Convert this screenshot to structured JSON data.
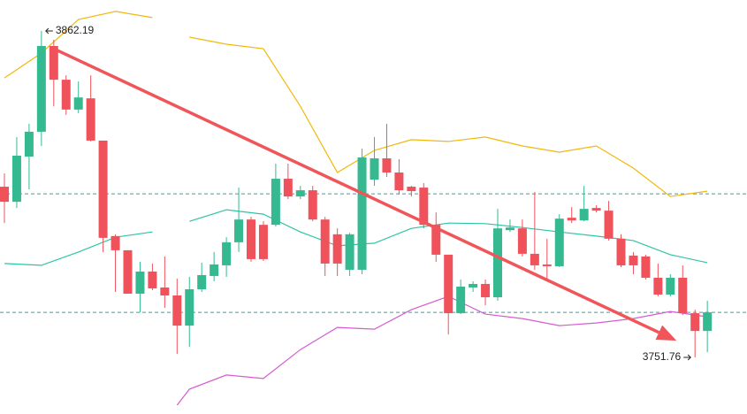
{
  "chart_data": {
    "type": "candlestick",
    "ylim": [
      3732.6,
      3872.67
    ],
    "up_color": "#35b991",
    "down_color": "#f0525c",
    "open": [
      3809.5,
      3804.4,
      3819.7,
      3828.1,
      3857.1,
      3845.7,
      3835.6,
      3839.4,
      3825.1,
      3792.8,
      3788.0,
      3773.3,
      3780.8,
      3775.4,
      3772.7,
      3762.5,
      3774.8,
      3779.3,
      3782.9,
      3790.7,
      3798.4,
      3796.6,
      3796.6,
      3812.2,
      3806.2,
      3808.3,
      3798.4,
      3793.4,
      3781.4,
      3781.4,
      3811.9,
      3819.1,
      3814.3,
      3809.5,
      3809.2,
      3796.6,
      3786.5,
      3766.7,
      3775.4,
      3776.6,
      3772.1,
      3794.8,
      3795.4,
      3786.8,
      3783.2,
      3782.6,
      3799.0,
      3798.1,
      3802.3,
      3801.4,
      3791.9,
      3786.2,
      3785.9,
      3778.7,
      3773.0,
      3778.7,
      3766.7,
      3760.7
    ],
    "high": [
      3814.0,
      3826.3,
      3830.8,
      3862.19,
      3859.2,
      3847.2,
      3845.1,
      3847.2,
      3825.1,
      3793.4,
      3788.0,
      3784.1,
      3783.5,
      3785.9,
      3778.4,
      3779.0,
      3783.8,
      3787.4,
      3792.4,
      3809.2,
      3799.3,
      3797.8,
      3817.3,
      3817.3,
      3809.8,
      3809.8,
      3799.3,
      3795.4,
      3793.9,
      3822.4,
      3826.3,
      3830.8,
      3818.8,
      3809.8,
      3810.7,
      3800.8,
      3786.5,
      3778.1,
      3777.5,
      3778.1,
      3802.0,
      3798.4,
      3798.4,
      3807.7,
      3791.9,
      3800.2,
      3802.6,
      3809.8,
      3803.2,
      3804.7,
      3793.4,
      3787.4,
      3786.5,
      3783.5,
      3779.9,
      3782.9,
      3767.9,
      3770.9
    ],
    "low": [
      3797.2,
      3802.3,
      3808.6,
      3823.3,
      3836.7,
      3833.8,
      3834.4,
      3824.8,
      3787.4,
      3773.9,
      3773.3,
      3767.0,
      3774.5,
      3768.5,
      3752.9,
      3755.3,
      3773.9,
      3777.5,
      3779.0,
      3787.4,
      3784.1,
      3784.4,
      3796.0,
      3805.3,
      3805.3,
      3797.8,
      3779.3,
      3779.3,
      3779.3,
      3779.9,
      3809.8,
      3812.8,
      3806.8,
      3806.2,
      3795.4,
      3784.1,
      3759.5,
      3766.4,
      3773.9,
      3769.4,
      3770.9,
      3794.2,
      3785.9,
      3781.4,
      3777.5,
      3782.3,
      3797.2,
      3797.8,
      3800.8,
      3791.3,
      3782.3,
      3779.9,
      3778.1,
      3772.4,
      3772.4,
      3766.1,
      3751.76,
      3753.5
    ],
    "close": [
      3804.4,
      3820.0,
      3828.1,
      3857.1,
      3845.7,
      3835.6,
      3839.7,
      3825.1,
      3792.2,
      3788.0,
      3773.3,
      3780.8,
      3775.1,
      3772.7,
      3762.5,
      3774.8,
      3779.6,
      3783.2,
      3790.7,
      3798.4,
      3785.0,
      3785.0,
      3812.2,
      3806.2,
      3808.3,
      3798.4,
      3783.5,
      3783.5,
      3793.4,
      3819.4,
      3819.1,
      3814.3,
      3808.3,
      3808.0,
      3796.6,
      3786.5,
      3766.7,
      3775.7,
      3776.6,
      3772.1,
      3795.4,
      3795.7,
      3786.8,
      3782.9,
      3782.6,
      3798.7,
      3798.1,
      3802.0,
      3801.4,
      3791.9,
      3782.9,
      3782.9,
      3778.7,
      3773.0,
      3778.7,
      3766.7,
      3760.7,
      3767.0
    ],
    "bands": {
      "x": [
        0,
        3,
        6,
        9,
        12,
        14,
        15,
        18,
        21,
        24,
        27,
        30,
        33,
        36,
        39,
        42,
        45,
        48,
        51,
        54,
        57
      ],
      "series": [
        {
          "color": "#f0b90b",
          "values": [
            3846.3,
            3854.7,
            3866.1,
            3868.8,
            3866.7,
            null,
            3860.1,
            3857.7,
            3856.2,
            3836.7,
            3814.3,
            3821.8,
            3825.4,
            3824.8,
            3826.3,
            3823.3,
            3821.2,
            3823.3,
            3815.8,
            3806.2,
            3808.0
          ]
        },
        {
          "color": "#2ec4a6",
          "values": [
            3783.5,
            3782.9,
            3787.4,
            3792.4,
            3794.2,
            null,
            3797.8,
            3801.7,
            3800.2,
            3794.2,
            3789.5,
            3790.4,
            3795.4,
            3797.2,
            3797.0,
            3795.7,
            3794.2,
            3792.8,
            3791.3,
            3786.5,
            3783.8
          ]
        },
        {
          "color": "#d65bd0",
          "values": [
            null,
            null,
            null,
            null,
            null,
            3735.6,
            3741.0,
            3745.8,
            3744.6,
            3754.4,
            3761.9,
            3761.3,
            3767.9,
            3772.4,
            3766.4,
            3764.9,
            3762.5,
            3763.4,
            3764.9,
            3767.3,
            3765.5
          ]
        }
      ]
    },
    "levels": {
      "color": "#4a9b9b",
      "values": [
        3807.1,
        3767.0
      ]
    },
    "trend": {
      "color": "#f0555a",
      "x": [
        4,
        54.5
      ],
      "values": [
        3856.2,
        3757.4
      ]
    },
    "annotations": [
      {
        "index": 3,
        "label": "3862.19"
      },
      {
        "index": 56,
        "label": "3751.76"
      }
    ]
  }
}
